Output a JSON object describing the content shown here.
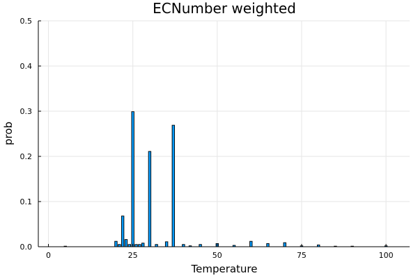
{
  "chart_data": {
    "type": "bar",
    "title": "ECNumber weighted",
    "xlabel": "Temperature",
    "ylabel": "prob",
    "xlim": [
      -3,
      107
    ],
    "ylim": [
      0,
      0.5
    ],
    "xticks": [
      0,
      25,
      50,
      75,
      100
    ],
    "yticks": [
      0.0,
      0.1,
      0.2,
      0.3,
      0.4,
      0.5
    ],
    "ytick_labels": [
      "0.0",
      "0.1",
      "0.2",
      "0.3",
      "0.4",
      "0.5"
    ],
    "grid": true,
    "legend": "none",
    "bar_color": "#009af9",
    "bins": [
      {
        "x": 5,
        "value": 0.001
      },
      {
        "x": 20,
        "value": 0.012
      },
      {
        "x": 21,
        "value": 0.005
      },
      {
        "x": 22,
        "value": 0.068
      },
      {
        "x": 23,
        "value": 0.016
      },
      {
        "x": 24,
        "value": 0.005
      },
      {
        "x": 25,
        "value": 0.299
      },
      {
        "x": 26,
        "value": 0.005
      },
      {
        "x": 27,
        "value": 0.005
      },
      {
        "x": 28,
        "value": 0.008
      },
      {
        "x": 30,
        "value": 0.211
      },
      {
        "x": 32,
        "value": 0.005
      },
      {
        "x": 35,
        "value": 0.011
      },
      {
        "x": 37,
        "value": 0.269
      },
      {
        "x": 40,
        "value": 0.005
      },
      {
        "x": 42,
        "value": 0.002
      },
      {
        "x": 45,
        "value": 0.005
      },
      {
        "x": 50,
        "value": 0.007
      },
      {
        "x": 55,
        "value": 0.003
      },
      {
        "x": 60,
        "value": 0.012
      },
      {
        "x": 65,
        "value": 0.007
      },
      {
        "x": 70,
        "value": 0.009
      },
      {
        "x": 75,
        "value": 0.002
      },
      {
        "x": 80,
        "value": 0.004
      },
      {
        "x": 85,
        "value": 0.001
      },
      {
        "x": 90,
        "value": 0.001
      },
      {
        "x": 100,
        "value": 0.002
      }
    ]
  }
}
